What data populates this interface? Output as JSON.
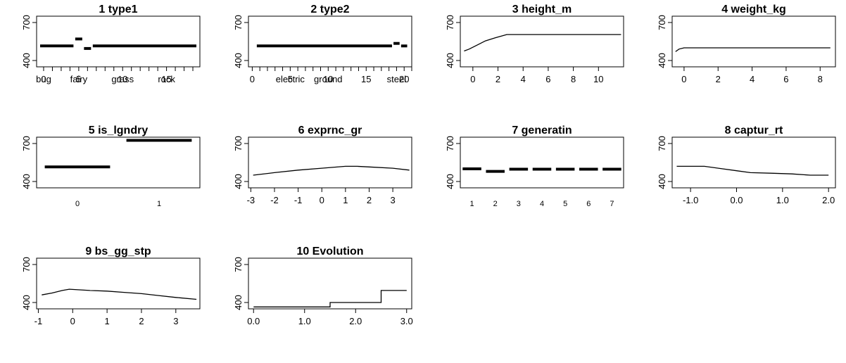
{
  "chart_data": [
    {
      "index": 1,
      "title": "1 type1",
      "type": "line",
      "style": "step",
      "x_label_ticks": [
        {
          "x": 1,
          "label": "0"
        },
        {
          "x": 1,
          "label": "bug"
        },
        {
          "x": 5,
          "label": "fairy"
        },
        {
          "x": 5,
          "label": "5"
        },
        {
          "x": 10,
          "label": "grass"
        },
        {
          "x": 10,
          "label": "10"
        },
        {
          "x": 15,
          "label": "rock"
        },
        {
          "x": 15,
          "label": "15"
        }
      ],
      "xlim": [
        0.2,
        18.8
      ],
      "y_ticks": [
        400,
        700
      ],
      "ylim": [
        350,
        750
      ],
      "segments": [
        {
          "x0": 0.6,
          "x1": 4.4,
          "y": 515
        },
        {
          "x0": 4.6,
          "x1": 5.4,
          "y": 570
        },
        {
          "x0": 5.6,
          "x1": 6.4,
          "y": 495
        },
        {
          "x0": 6.6,
          "x1": 18.4,
          "y": 515
        }
      ]
    },
    {
      "index": 2,
      "title": "2 type2",
      "type": "line",
      "style": "step",
      "x_label_ticks": [
        {
          "x": 0,
          "label": "0"
        },
        {
          "x": 5,
          "label": "electric"
        },
        {
          "x": 5,
          "label": "5"
        },
        {
          "x": 10,
          "label": "ground"
        },
        {
          "x": 10,
          "label": "10"
        },
        {
          "x": 15,
          "label": "15"
        },
        {
          "x": 19,
          "label": "steel"
        },
        {
          "x": 20,
          "label": "20"
        }
      ],
      "xlim": [
        -0.5,
        21
      ],
      "y_ticks": [
        400,
        700
      ],
      "ylim": [
        350,
        750
      ],
      "segments": [
        {
          "x0": 0.6,
          "x1": 18.4,
          "y": 515
        },
        {
          "x0": 18.6,
          "x1": 19.4,
          "y": 535
        },
        {
          "x0": 19.6,
          "x1": 20.4,
          "y": 515
        }
      ]
    },
    {
      "index": 3,
      "title": "3 height_m",
      "type": "line",
      "x_ticks": [
        0,
        2,
        4,
        6,
        8,
        10
      ],
      "xlim": [
        -1,
        12
      ],
      "y_ticks": [
        400,
        700
      ],
      "ylim": [
        350,
        750
      ],
      "x": [
        -0.7,
        -0.3,
        0.3,
        1.0,
        1.8,
        2.7,
        5,
        8,
        11.8
      ],
      "y": [
        475,
        490,
        520,
        555,
        580,
        605,
        605,
        605,
        605
      ]
    },
    {
      "index": 4,
      "title": "4 weight_kg",
      "type": "line",
      "x_ticks": [
        0,
        2,
        4,
        6,
        8
      ],
      "xlim": [
        -0.7,
        8.9
      ],
      "y_ticks": [
        400,
        700
      ],
      "ylim": [
        350,
        750
      ],
      "x": [
        -0.5,
        -0.3,
        0,
        2,
        4,
        6,
        8.6
      ],
      "y": [
        470,
        490,
        500,
        500,
        500,
        500,
        500
      ]
    },
    {
      "index": 5,
      "title": "5 is_lgndry",
      "type": "line",
      "style": "step",
      "x_ticks": [
        0,
        1
      ],
      "xlim": [
        -0.5,
        1.5
      ],
      "y_ticks": [
        400,
        700
      ],
      "ylim": [
        350,
        750
      ],
      "segments": [
        {
          "x0": -0.4,
          "x1": 0.4,
          "y": 515
        },
        {
          "x0": 0.6,
          "x1": 1.4,
          "y": 725
        }
      ]
    },
    {
      "index": 6,
      "title": "6 exprnc_gr",
      "type": "line",
      "x_ticks": [
        -3,
        -2,
        -1,
        0,
        1,
        2,
        3
      ],
      "xlim": [
        -3.1,
        3.8
      ],
      "y_ticks": [
        400,
        700
      ],
      "ylim": [
        350,
        750
      ],
      "x": [
        -2.9,
        -2,
        -1,
        0,
        1,
        1.5,
        2,
        3,
        3.7
      ],
      "y": [
        450,
        470,
        490,
        505,
        520,
        520,
        515,
        505,
        490
      ]
    },
    {
      "index": 7,
      "title": "7 generatin",
      "type": "line",
      "style": "step",
      "x_ticks": [
        1,
        2,
        3,
        4,
        5,
        6,
        7
      ],
      "xlim": [
        0.5,
        7.5
      ],
      "y_ticks": [
        400,
        700
      ],
      "ylim": [
        350,
        750
      ],
      "segments": [
        {
          "x0": 0.6,
          "x1": 1.4,
          "y": 500
        },
        {
          "x0": 1.6,
          "x1": 2.4,
          "y": 480
        },
        {
          "x0": 2.6,
          "x1": 3.4,
          "y": 497
        },
        {
          "x0": 3.6,
          "x1": 4.4,
          "y": 497
        },
        {
          "x0": 4.6,
          "x1": 5.4,
          "y": 497
        },
        {
          "x0": 5.6,
          "x1": 6.4,
          "y": 497
        },
        {
          "x0": 6.6,
          "x1": 7.4,
          "y": 497
        }
      ]
    },
    {
      "index": 8,
      "title": "8 captur_rt",
      "type": "line",
      "x_ticks": [
        -1.0,
        0.0,
        1.0,
        2.0
      ],
      "x_tick_labels": [
        "-1.0",
        "0.0",
        "1.0",
        "2.0"
      ],
      "xlim": [
        -1.4,
        2.15
      ],
      "y_ticks": [
        400,
        700
      ],
      "ylim": [
        350,
        750
      ],
      "x": [
        -1.3,
        -0.7,
        -0.3,
        0,
        0.3,
        0.8,
        1.2,
        1.6,
        2.0
      ],
      "y": [
        520,
        520,
        500,
        485,
        470,
        465,
        460,
        450,
        450
      ]
    },
    {
      "index": 9,
      "title": "9 bs_gg_stp",
      "type": "line",
      "x_ticks": [
        -1,
        0,
        1,
        2,
        3
      ],
      "xlim": [
        -1.05,
        3.7
      ],
      "y_ticks": [
        400,
        700
      ],
      "ylim": [
        350,
        750
      ],
      "x": [
        -0.9,
        -0.6,
        -0.3,
        -0.1,
        0.5,
        1,
        1.5,
        2,
        2.5,
        3,
        3.6
      ],
      "y": [
        460,
        475,
        495,
        505,
        495,
        490,
        480,
        470,
        455,
        440,
        425
      ]
    },
    {
      "index": 10,
      "title": "10 Evolution",
      "type": "line",
      "style": "step",
      "x_ticks": [
        0.0,
        1.0,
        2.0,
        3.0
      ],
      "x_tick_labels": [
        "0.0",
        "1.0",
        "2.0",
        "3.0"
      ],
      "xlim": [
        -0.1,
        3.1
      ],
      "y_ticks": [
        400,
        700
      ],
      "ylim": [
        350,
        750
      ],
      "x": [
        0.0,
        1.5,
        1.5,
        2.5,
        2.5,
        3.0
      ],
      "y": [
        365,
        365,
        400,
        400,
        495,
        495
      ]
    }
  ]
}
